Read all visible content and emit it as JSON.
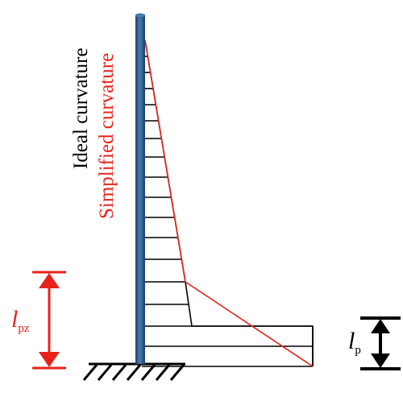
{
  "labels": {
    "ideal": "Ideal curvature",
    "simplified": "Simplified curvature",
    "lpz_main": "l",
    "lpz_sub": "pz",
    "lp_main": "l",
    "lp_sub": "p"
  },
  "colors": {
    "column": "#2e5d93",
    "column_dark": "#1f3f66",
    "ideal": "#000000",
    "simplified": "#e8231a",
    "lpz_arrow": "#e8231a",
    "lp_arrow": "#000000"
  }
}
